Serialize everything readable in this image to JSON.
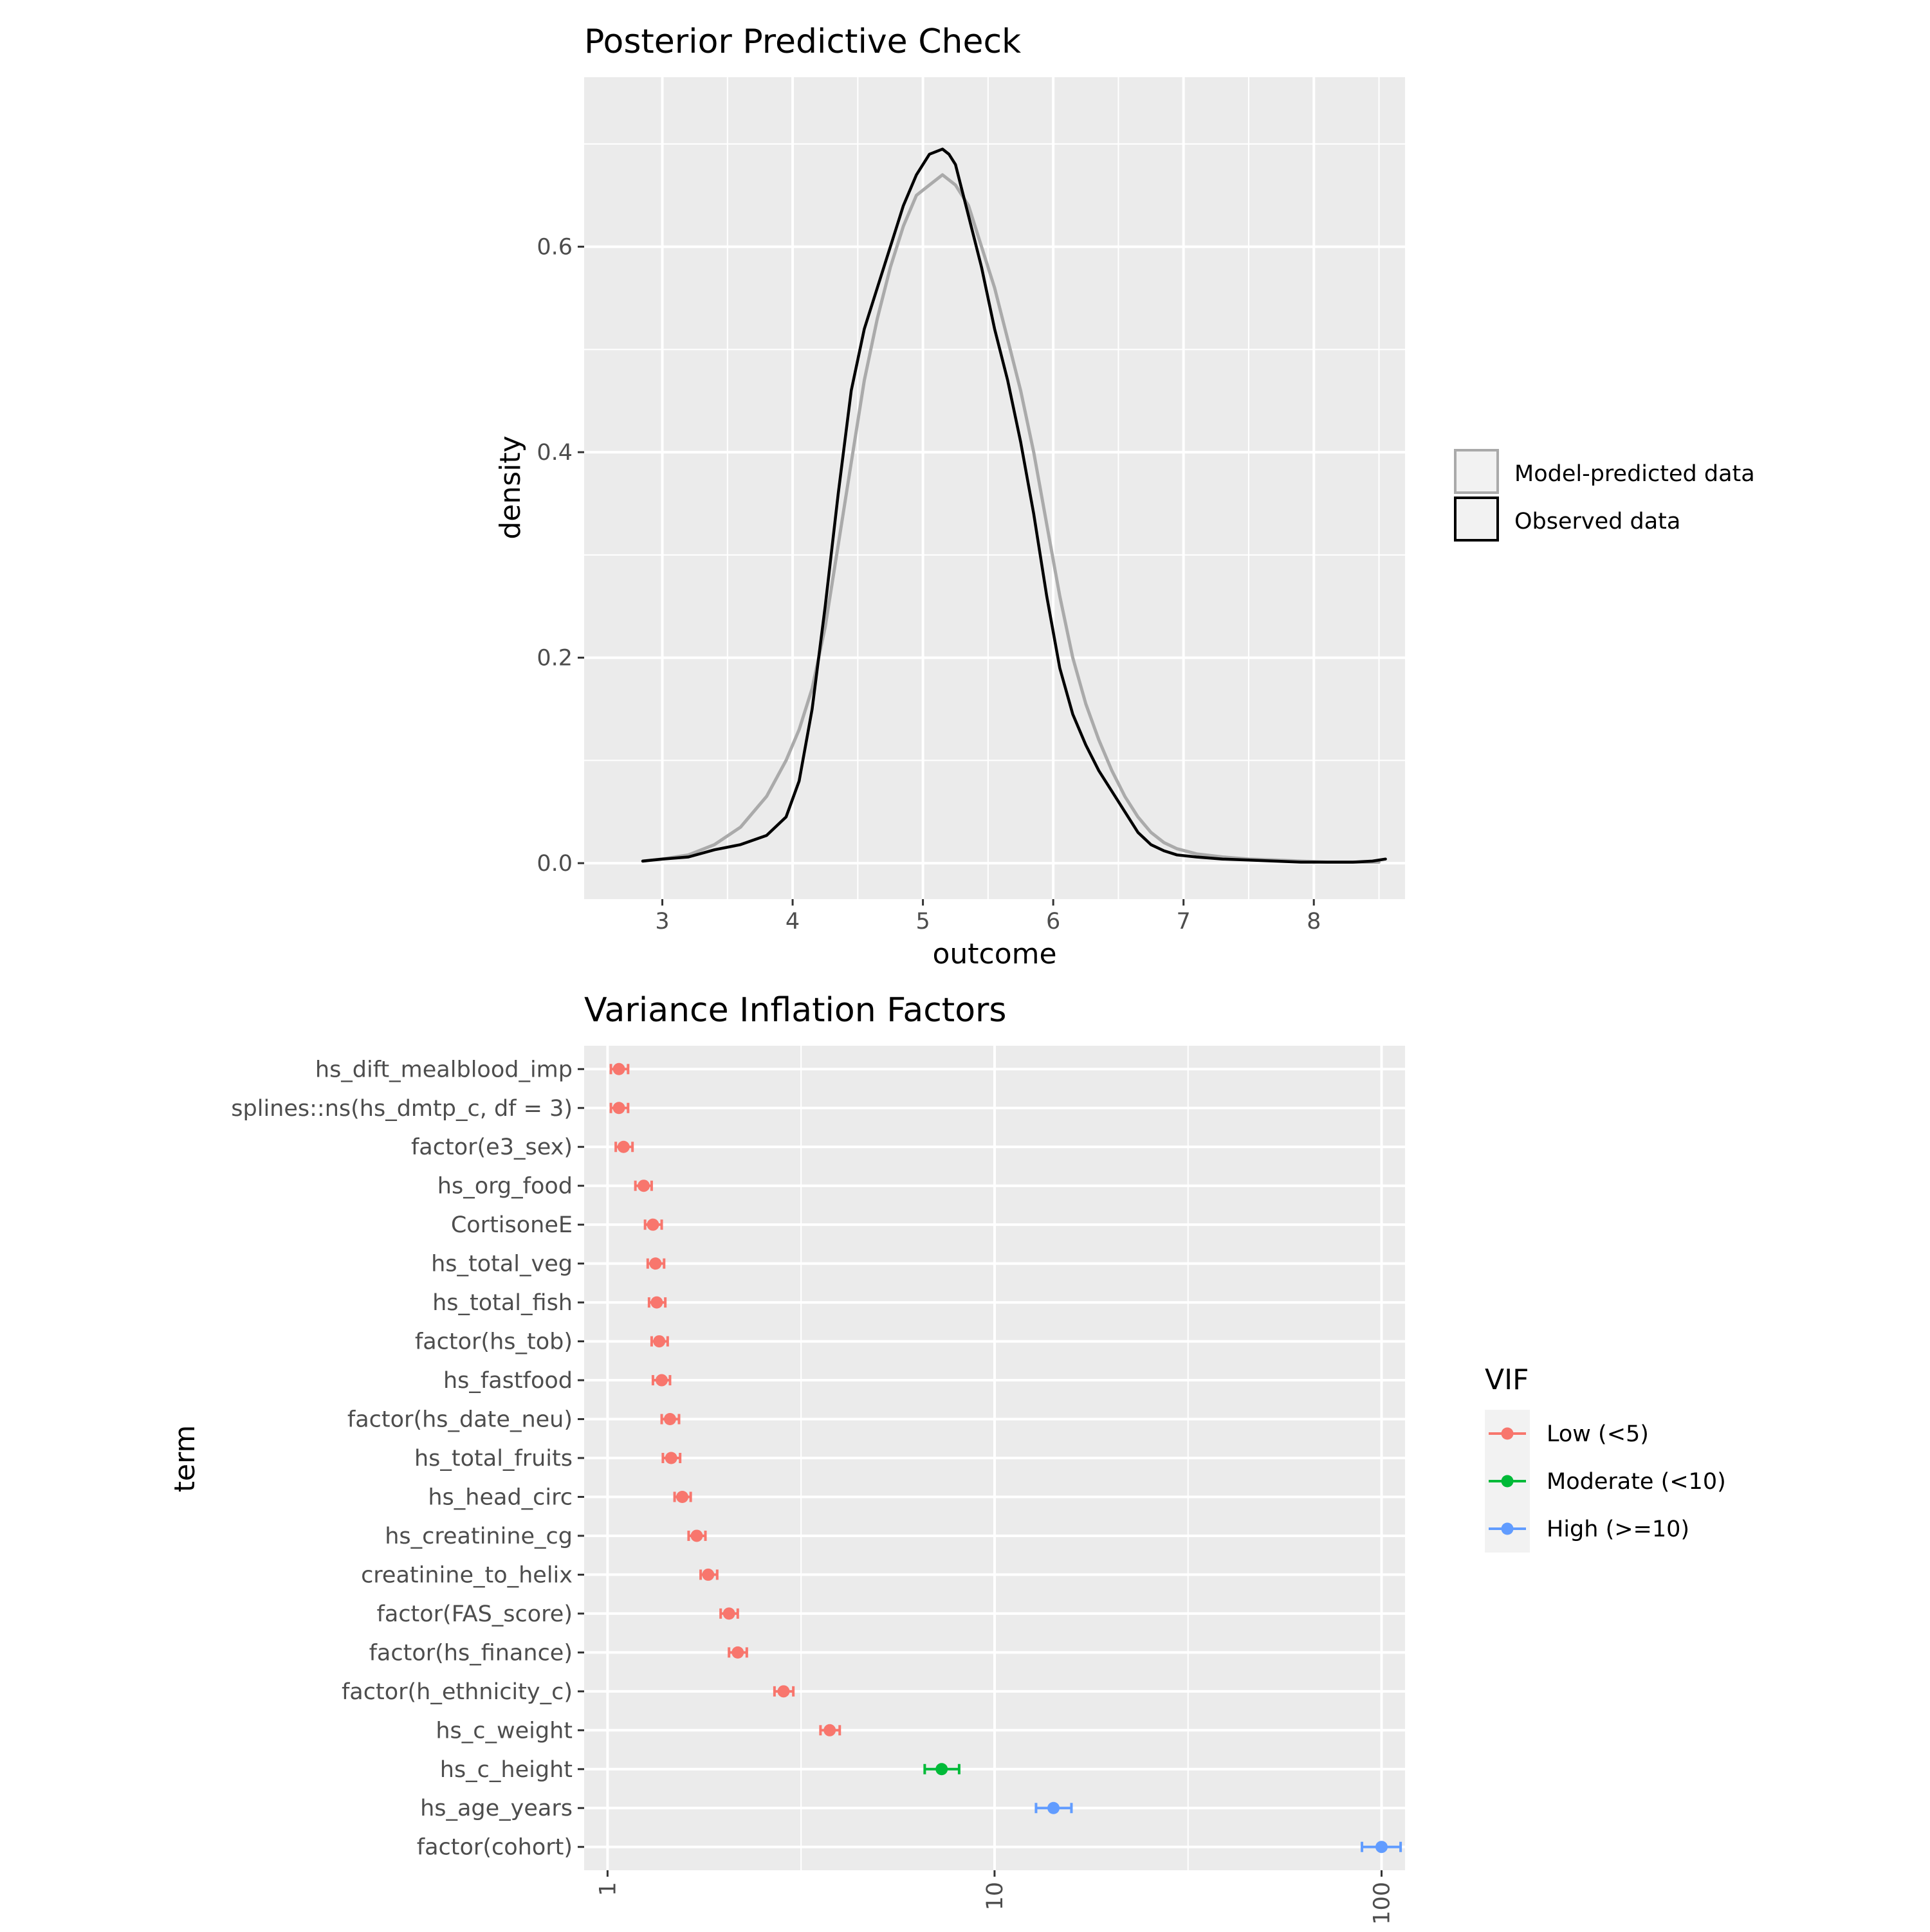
{
  "chart_data": [
    {
      "type": "line",
      "title": "Posterior Predictive Check",
      "xlabel": "outcome",
      "ylabel": "density",
      "xlim": [
        2.4,
        8.7
      ],
      "ylim": [
        -0.035,
        0.765
      ],
      "x_ticks": [
        3,
        4,
        5,
        6,
        7,
        8
      ],
      "y_ticks": [
        0.0,
        0.2,
        0.4,
        0.6
      ],
      "y_tick_labels": [
        "0.0",
        "0.2",
        "0.4",
        "0.6"
      ],
      "legend": {
        "position": "right",
        "items": [
          {
            "label": "Model-predicted data",
            "color": "#aaaaaa"
          },
          {
            "label": "Observed data",
            "color": "#000000"
          }
        ]
      },
      "series": [
        {
          "name": "Observed data",
          "color": "#000000",
          "x": [
            2.85,
            3.0,
            3.2,
            3.4,
            3.6,
            3.8,
            3.95,
            4.05,
            4.15,
            4.25,
            4.35,
            4.45,
            4.55,
            4.65,
            4.75,
            4.85,
            4.95,
            5.05,
            5.15,
            5.2,
            5.25,
            5.35,
            5.45,
            5.55,
            5.65,
            5.75,
            5.85,
            5.95,
            6.05,
            6.15,
            6.25,
            6.35,
            6.45,
            6.55,
            6.65,
            6.75,
            6.85,
            6.95,
            7.1,
            7.3,
            7.5,
            7.7,
            7.9,
            8.1,
            8.3,
            8.45,
            8.55
          ],
          "y": [
            0.002,
            0.004,
            0.006,
            0.013,
            0.018,
            0.027,
            0.045,
            0.08,
            0.15,
            0.25,
            0.36,
            0.46,
            0.52,
            0.56,
            0.6,
            0.64,
            0.67,
            0.69,
            0.695,
            0.69,
            0.68,
            0.63,
            0.58,
            0.52,
            0.47,
            0.41,
            0.34,
            0.26,
            0.19,
            0.145,
            0.115,
            0.09,
            0.07,
            0.05,
            0.03,
            0.018,
            0.012,
            0.008,
            0.006,
            0.004,
            0.003,
            0.002,
            0.001,
            0.001,
            0.001,
            0.002,
            0.004
          ]
        },
        {
          "name": "Model-predicted data",
          "color": "#aaaaaa",
          "x": [
            2.85,
            3.0,
            3.2,
            3.4,
            3.6,
            3.8,
            3.95,
            4.05,
            4.15,
            4.25,
            4.35,
            4.45,
            4.55,
            4.65,
            4.75,
            4.85,
            4.95,
            5.05,
            5.15,
            5.25,
            5.35,
            5.45,
            5.55,
            5.65,
            5.75,
            5.85,
            5.95,
            6.05,
            6.15,
            6.25,
            6.35,
            6.45,
            6.55,
            6.65,
            6.75,
            6.85,
            6.95,
            7.1,
            7.3,
            7.5,
            7.7,
            7.9,
            8.1,
            8.3,
            8.5
          ],
          "y": [
            0.002,
            0.004,
            0.008,
            0.018,
            0.035,
            0.065,
            0.1,
            0.13,
            0.17,
            0.23,
            0.31,
            0.39,
            0.47,
            0.53,
            0.58,
            0.62,
            0.65,
            0.66,
            0.67,
            0.66,
            0.64,
            0.6,
            0.56,
            0.51,
            0.46,
            0.4,
            0.33,
            0.26,
            0.2,
            0.155,
            0.12,
            0.09,
            0.065,
            0.045,
            0.03,
            0.02,
            0.014,
            0.009,
            0.006,
            0.004,
            0.003,
            0.002,
            0.001,
            0.001,
            0.001
          ]
        }
      ]
    },
    {
      "type": "scatter",
      "title": "Variance Inflation Factors",
      "xlabel": "",
      "ylabel": "term",
      "x_scale": "log10",
      "xlim": [
        0.87,
        115
      ],
      "x_ticks": [
        1,
        10,
        100
      ],
      "legend": {
        "title": "VIF",
        "position": "right",
        "items": [
          {
            "label": "Low (<5)",
            "color": "#F8766D"
          },
          {
            "label": "Moderate (<10)",
            "color": "#00BA38"
          },
          {
            "label": "High (>=10)",
            "color": "#619CFF"
          }
        ]
      },
      "categories": [
        "hs_dift_mealblood_imp",
        "splines::ns(hs_dmtp_c, df = 3)",
        "factor(e3_sex)",
        "hs_org_food",
        "CortisoneE",
        "hs_total_veg",
        "hs_total_fish",
        "factor(hs_tob)",
        "hs_fastfood",
        "factor(hs_date_neu)",
        "hs_total_fruits",
        "hs_head_circ",
        "hs_creatinine_cg",
        "creatinine_to_helix",
        "factor(FAS_score)",
        "factor(hs_finance)",
        "factor(h_ethnicity_c)",
        "hs_c_weight",
        "hs_c_height",
        "hs_age_years",
        "factor(cohort)"
      ],
      "values": [
        1.07,
        1.07,
        1.1,
        1.24,
        1.31,
        1.33,
        1.34,
        1.36,
        1.38,
        1.45,
        1.46,
        1.56,
        1.7,
        1.82,
        2.06,
        2.17,
        2.85,
        3.75,
        7.3,
        14.2,
        100
      ],
      "ci_low": [
        1.02,
        1.02,
        1.05,
        1.18,
        1.25,
        1.27,
        1.28,
        1.3,
        1.31,
        1.38,
        1.39,
        1.49,
        1.62,
        1.74,
        1.96,
        2.06,
        2.7,
        3.55,
        6.6,
        12.8,
        89
      ],
      "ci_high": [
        1.13,
        1.13,
        1.16,
        1.3,
        1.38,
        1.4,
        1.41,
        1.43,
        1.45,
        1.53,
        1.54,
        1.64,
        1.79,
        1.92,
        2.17,
        2.29,
        3.02,
        3.98,
        8.1,
        15.8,
        112
      ],
      "group": [
        "Low (<5)",
        "Low (<5)",
        "Low (<5)",
        "Low (<5)",
        "Low (<5)",
        "Low (<5)",
        "Low (<5)",
        "Low (<5)",
        "Low (<5)",
        "Low (<5)",
        "Low (<5)",
        "Low (<5)",
        "Low (<5)",
        "Low (<5)",
        "Low (<5)",
        "Low (<5)",
        "Low (<5)",
        "Low (<5)",
        "Moderate (<10)",
        "High (>=10)",
        "High (>=10)"
      ]
    }
  ]
}
